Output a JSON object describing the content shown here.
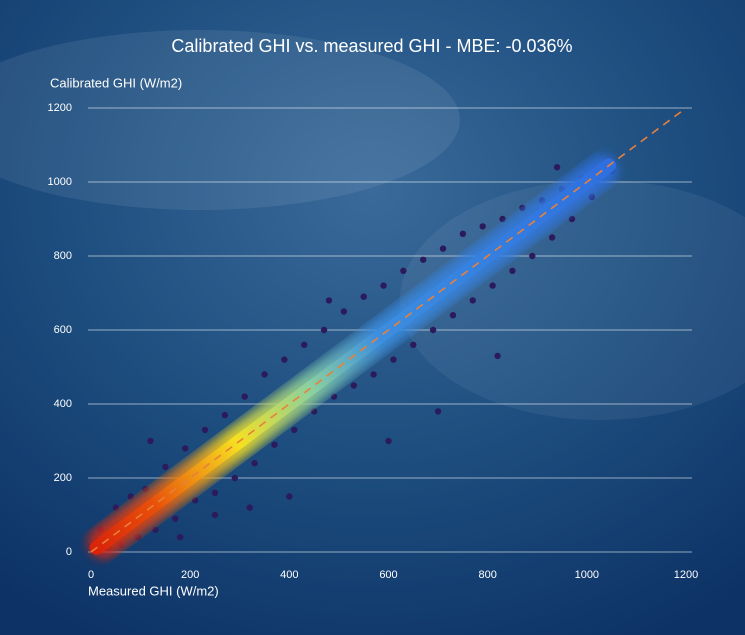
{
  "chart_data": {
    "type": "scatter",
    "title": "Calibrated GHI vs. measured GHI - MBE: -0.036%",
    "x_label": "Measured GHI (W/m2)",
    "y_label": "Calibrated GHI (W/m2)",
    "xlim": [
      0,
      1200
    ],
    "ylim": [
      0,
      1200
    ],
    "xticks": [
      0,
      200,
      400,
      600,
      800,
      1000,
      1200
    ],
    "yticks": [
      0,
      200,
      400,
      600,
      800,
      1000,
      1200
    ],
    "grid": true,
    "points": {
      "color": "#2b1b5c",
      "x": [
        20,
        35,
        50,
        60,
        80,
        95,
        110,
        130,
        150,
        170,
        190,
        210,
        230,
        250,
        270,
        290,
        310,
        330,
        350,
        370,
        390,
        410,
        430,
        450,
        470,
        490,
        510,
        530,
        550,
        570,
        590,
        610,
        630,
        650,
        670,
        690,
        710,
        730,
        750,
        770,
        790,
        810,
        830,
        850,
        870,
        890,
        910,
        930,
        950,
        970,
        990,
        1010,
        1030,
        1050,
        120,
        250,
        320,
        480,
        600,
        700,
        820,
        940,
        180,
        400
      ],
      "y": [
        60,
        10,
        120,
        20,
        150,
        40,
        170,
        60,
        230,
        90,
        280,
        140,
        330,
        160,
        370,
        200,
        420,
        240,
        480,
        290,
        520,
        330,
        560,
        380,
        600,
        420,
        650,
        450,
        690,
        480,
        720,
        520,
        760,
        560,
        790,
        600,
        820,
        640,
        860,
        680,
        880,
        720,
        900,
        760,
        930,
        800,
        950,
        850,
        980,
        900,
        1010,
        960,
        1040,
        1030,
        300,
        100,
        120,
        680,
        300,
        380,
        530,
        1040,
        40,
        150
      ]
    },
    "reference_line": {
      "color": "#e8803a",
      "x": [
        0,
        1200
      ],
      "y": [
        0,
        1200
      ]
    }
  }
}
